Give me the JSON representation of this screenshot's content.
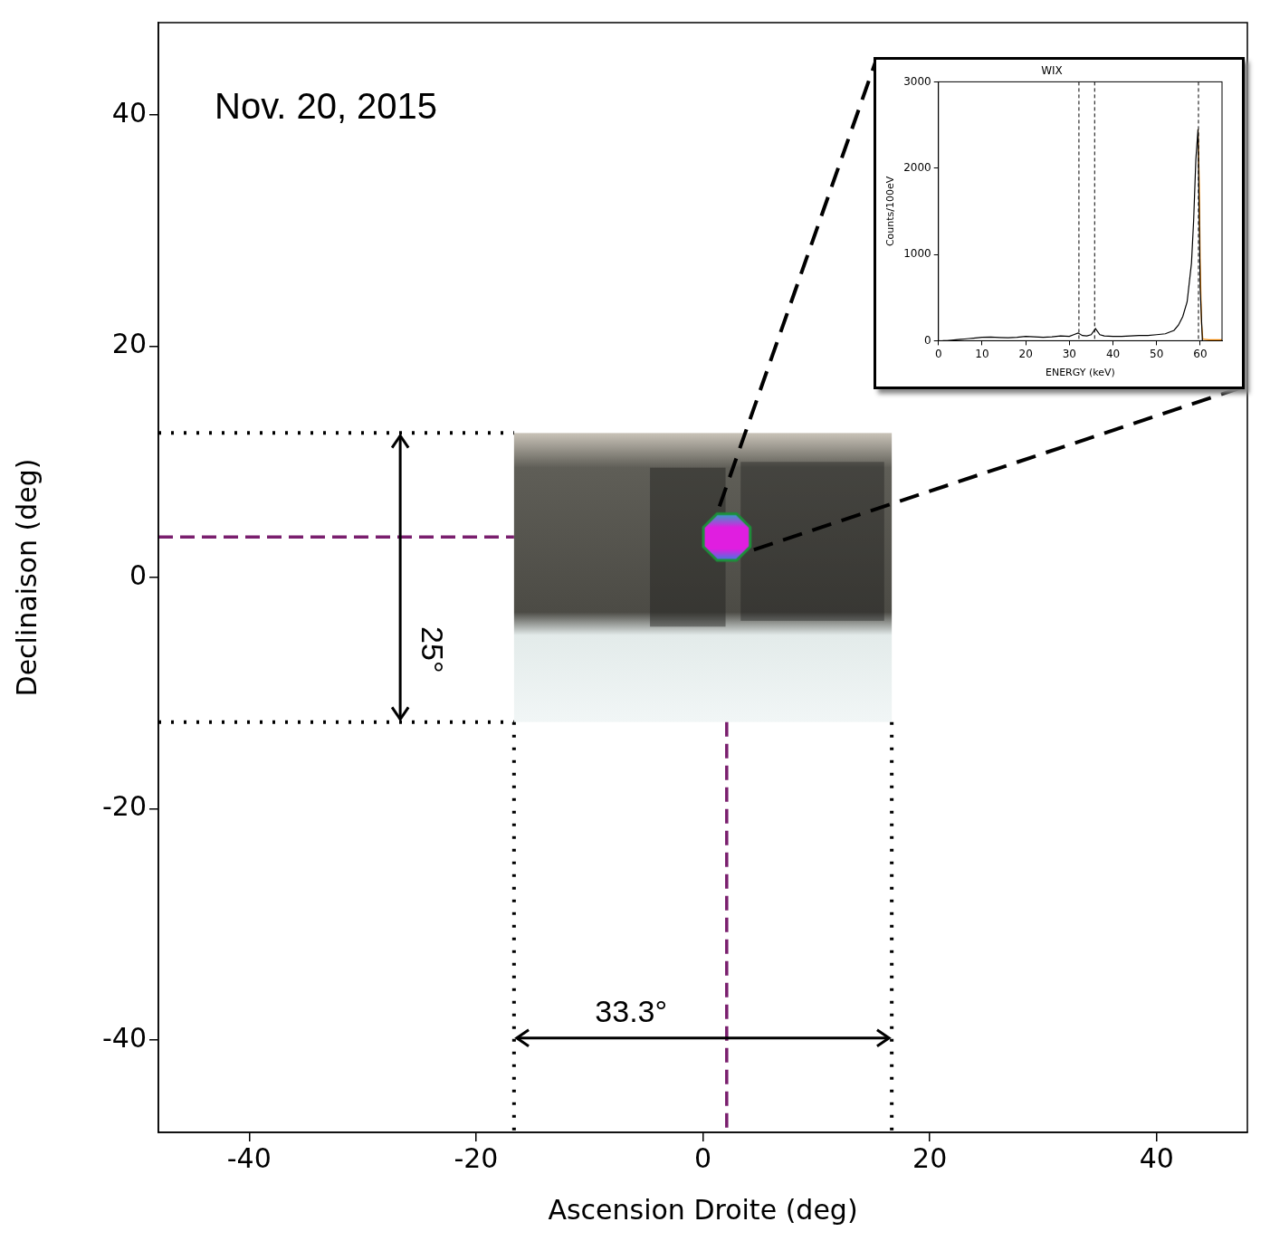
{
  "chart_data": [
    {
      "type": "scatter",
      "xlabel": "Ascension Droite (deg)",
      "ylabel": "Declinaison (deg)",
      "xlim": [
        -48,
        48
      ],
      "ylim": [
        -48,
        48
      ],
      "xticks": [
        -40,
        -20,
        0,
        20,
        40
      ],
      "yticks": [
        -40,
        -20,
        0,
        20,
        40
      ],
      "grid": false,
      "annotations": [
        "Nov. 20, 2015"
      ],
      "field_of_view": {
        "width": {
          "value": 33.3,
          "label": "33.3°"
        },
        "height": {
          "value": 25,
          "label": "25°"
        }
      },
      "series": [
        {
          "x": [
            2.1
          ],
          "values": [
            3.5
          ],
          "color": "#e01ee0",
          "marker": "octagon"
        }
      ]
    },
    {
      "type": "line",
      "title": "WIX",
      "xlabel": "ENERGY (keV)",
      "ylabel": "Counts/100eV",
      "xlim": [
        0,
        65
      ],
      "ylim": [
        0,
        3000
      ],
      "xticks": [
        0,
        10,
        20,
        30,
        40,
        50,
        60
      ],
      "yticks": [
        0,
        1000,
        2000,
        3000
      ],
      "grid": false,
      "vlines": [
        32.2,
        35.8,
        59.6
      ],
      "series": [
        {
          "color": "#000000",
          "x": [
            1,
            2,
            3,
            4,
            5,
            6,
            7,
            8,
            9,
            10,
            12,
            14,
            16,
            18,
            20,
            22,
            24,
            26,
            28,
            30,
            31,
            32,
            33,
            34,
            35,
            36,
            37,
            38,
            40,
            42,
            44,
            46,
            48,
            50,
            52,
            54,
            55,
            56,
            57,
            58,
            58.5,
            59,
            59.5,
            60,
            60.5
          ],
          "values": [
            0,
            0,
            5,
            10,
            15,
            20,
            25,
            30,
            35,
            40,
            42,
            38,
            35,
            40,
            50,
            45,
            40,
            45,
            55,
            50,
            70,
            90,
            60,
            55,
            70,
            140,
            70,
            55,
            50,
            50,
            55,
            60,
            60,
            70,
            80,
            120,
            180,
            280,
            450,
            900,
            1400,
            2100,
            2450,
            600,
            0
          ]
        },
        {
          "color": "#ff8c00",
          "x": [
            59.5,
            59.8,
            60,
            60.3,
            60.6,
            62,
            65
          ],
          "values": [
            2450,
            1800,
            900,
            200,
            20,
            10,
            10
          ]
        }
      ]
    }
  ]
}
